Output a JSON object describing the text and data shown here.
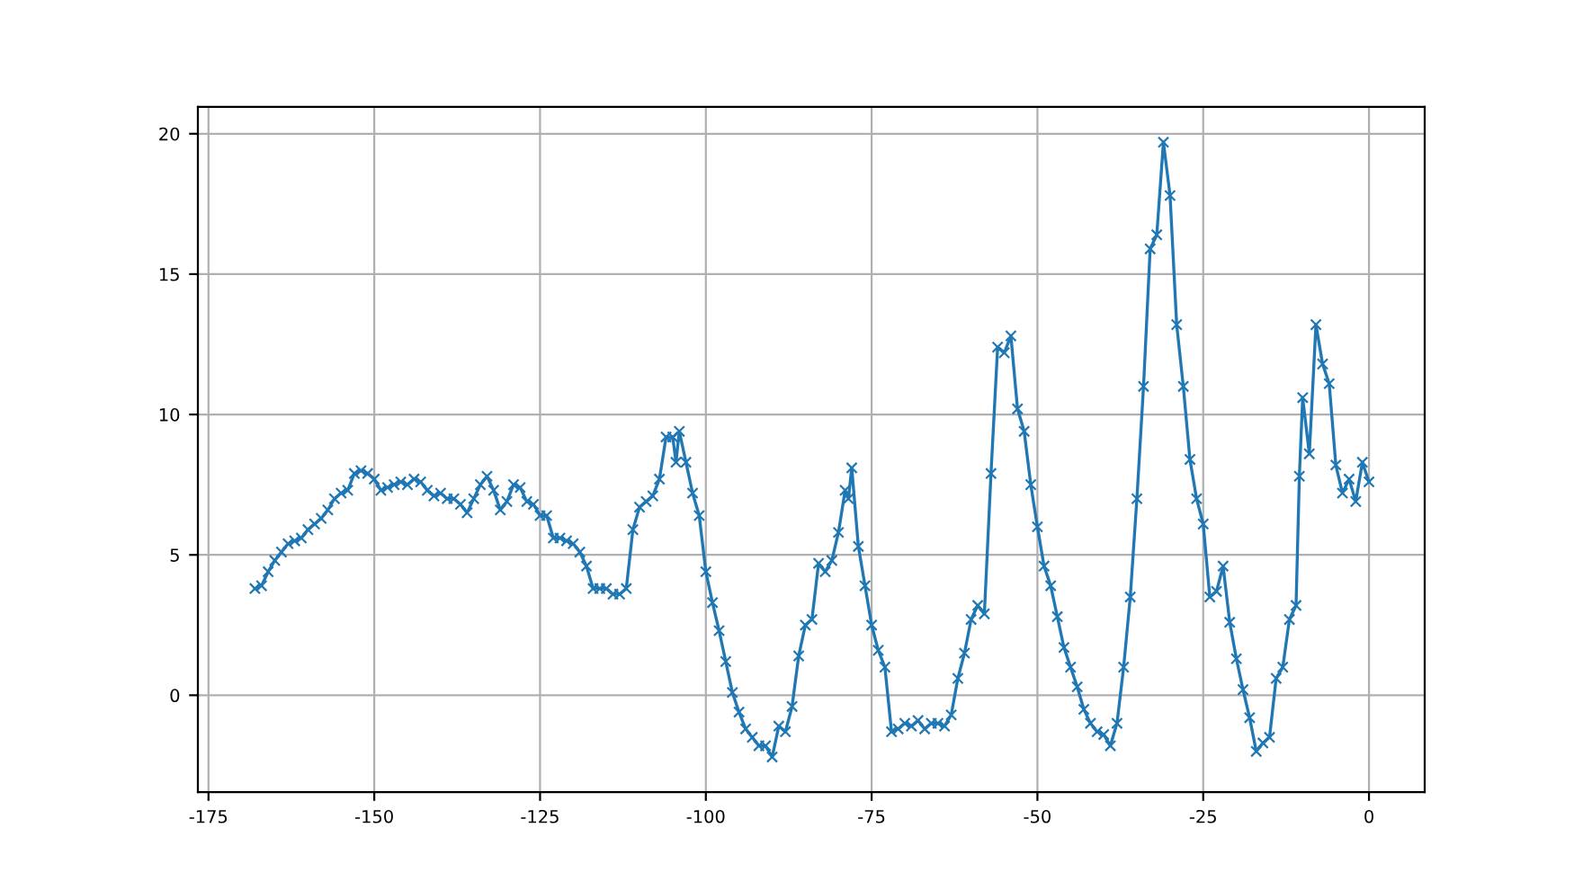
{
  "chart_data": {
    "type": "line",
    "x": [
      -168,
      -167,
      -166,
      -165,
      -164,
      -163,
      -162,
      -161,
      -160,
      -159,
      -158,
      -157,
      -156,
      -155,
      -154,
      -153,
      -152,
      -151,
      -150,
      -149,
      -148,
      -147,
      -146,
      -145,
      -144,
      -143,
      -142,
      -141,
      -140,
      -139,
      -138,
      -137,
      -136,
      -135,
      -134,
      -133,
      -132,
      -131,
      -130,
      -129,
      -128,
      -127,
      -126,
      -125,
      -124,
      -123,
      -122,
      -121,
      -120,
      -119,
      -118,
      -117,
      -116,
      -115,
      -114,
      -113,
      -112,
      -111,
      -110,
      -109,
      -108,
      -107,
      -106,
      -105,
      -104.5,
      -104,
      -103,
      -102,
      -101,
      -100,
      -99,
      -98,
      -97,
      -96,
      -95,
      -94,
      -93,
      -92,
      -91,
      -90,
      -89,
      -88,
      -87,
      -86,
      -85,
      -84,
      -83,
      -82,
      -81,
      -80,
      -79,
      -78.5,
      -78,
      -77,
      -76,
      -75,
      -74,
      -73,
      -72,
      -71,
      -70,
      -69,
      -68,
      -67,
      -66,
      -65,
      -64,
      -63,
      -62,
      -61,
      -60,
      -59,
      -58,
      -57,
      -56,
      -55,
      -54,
      -53,
      -52,
      -51,
      -50,
      -49,
      -48,
      -47,
      -46,
      -45,
      -44,
      -43,
      -42,
      -41,
      -40,
      -39,
      -38,
      -37,
      -36,
      -35,
      -34,
      -33,
      -32,
      -31,
      -30,
      -29,
      -28,
      -27,
      -26,
      -25,
      -24,
      -23,
      -22,
      -21,
      -20,
      -19,
      -18,
      -17,
      -16,
      -15,
      -14,
      -13,
      -12,
      -11,
      -10.5,
      -10,
      -9,
      -8,
      -7,
      -6,
      -5,
      -4,
      -3,
      -2,
      -1,
      0
    ],
    "series": [
      {
        "color": "#1f77b4",
        "values": [
          3.8,
          3.9,
          4.4,
          4.8,
          5.1,
          5.4,
          5.5,
          5.6,
          5.9,
          6.1,
          6.3,
          6.6,
          7.0,
          7.2,
          7.3,
          7.9,
          8.0,
          7.9,
          7.7,
          7.3,
          7.4,
          7.5,
          7.6,
          7.5,
          7.7,
          7.6,
          7.3,
          7.1,
          7.2,
          7.0,
          7.0,
          6.8,
          6.5,
          7.0,
          7.5,
          7.8,
          7.3,
          6.6,
          6.9,
          7.5,
          7.4,
          6.9,
          6.8,
          6.4,
          6.4,
          5.6,
          5.6,
          5.5,
          5.4,
          5.1,
          4.6,
          3.8,
          3.8,
          3.8,
          3.6,
          3.6,
          3.8,
          5.9,
          6.7,
          6.9,
          7.1,
          7.7,
          9.2,
          9.2,
          8.3,
          9.4,
          8.3,
          7.2,
          6.4,
          4.4,
          3.3,
          2.3,
          1.2,
          0.1,
          -0.6,
          -1.2,
          -1.5,
          -1.8,
          -1.8,
          -2.2,
          -1.1,
          -1.3,
          -0.4,
          1.4,
          2.5,
          2.7,
          4.7,
          4.4,
          4.8,
          5.8,
          7.3,
          7.0,
          8.1,
          5.3,
          3.9,
          2.5,
          1.6,
          1.0,
          -1.3,
          -1.2,
          -1.0,
          -1.1,
          -0.9,
          -1.2,
          -1.0,
          -1.0,
          -1.1,
          -0.7,
          0.6,
          1.5,
          2.7,
          3.2,
          2.9,
          7.9,
          12.4,
          12.2,
          12.8,
          10.2,
          9.4,
          7.5,
          6.0,
          4.6,
          3.9,
          2.8,
          1.7,
          1.0,
          0.3,
          -0.5,
          -1.0,
          -1.3,
          -1.4,
          -1.8,
          -1.0,
          1.0,
          3.5,
          7.0,
          11.0,
          15.9,
          16.4,
          19.7,
          17.8,
          13.2,
          11.0,
          8.4,
          7.0,
          6.1,
          3.5,
          3.7,
          4.6,
          2.6,
          1.3,
          0.2,
          -0.8,
          -2.0,
          -1.7,
          -1.5,
          0.6,
          1.0,
          2.7,
          3.2,
          7.8,
          10.6,
          8.6,
          13.2,
          11.8,
          11.1,
          8.2,
          7.2,
          7.7,
          6.9,
          8.3,
          7.6
        ]
      }
    ],
    "xlim": [
      -176.6,
      8.4
    ],
    "ylim": [
      -3.45,
      20.96
    ],
    "xticks": [
      -175,
      -150,
      -125,
      -100,
      -75,
      -50,
      -25,
      0
    ],
    "yticks": [
      0,
      5,
      10,
      15,
      20
    ],
    "grid": true,
    "marker": "cross",
    "line_style": "solid"
  }
}
